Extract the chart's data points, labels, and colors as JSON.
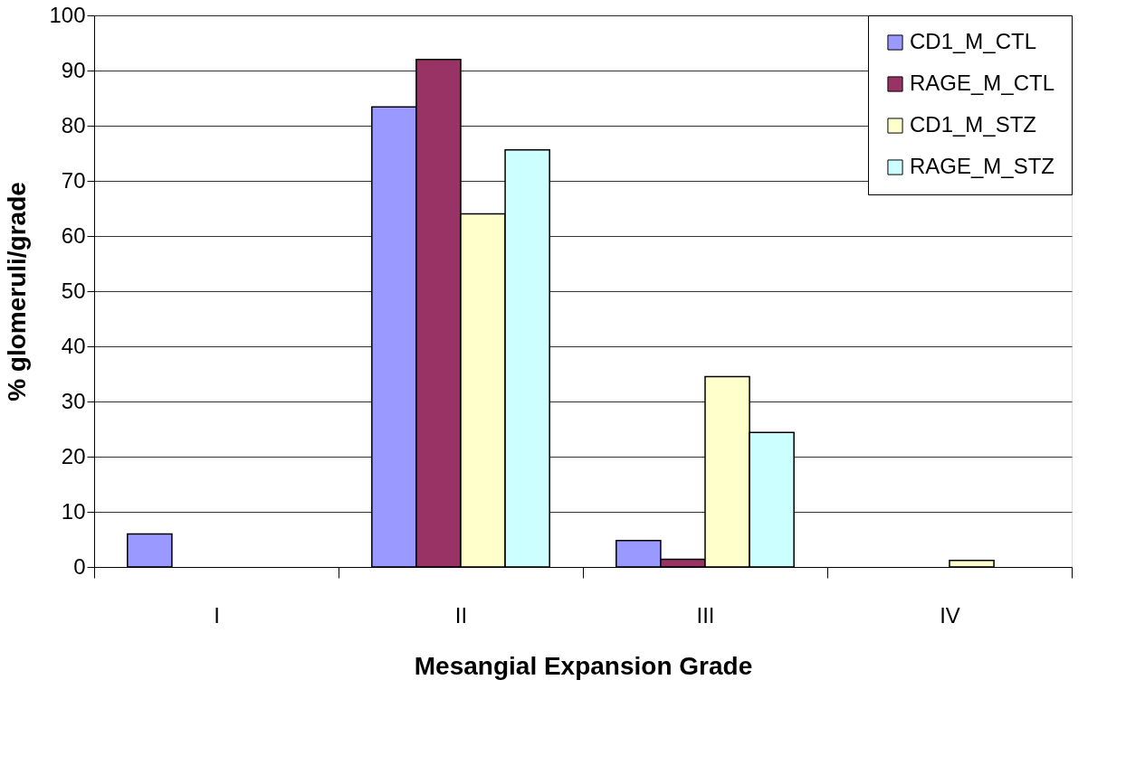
{
  "chart_data": {
    "type": "bar",
    "xlabel": "Mesangial Expansion Grade",
    "ylabel": "% glomeruli/grade",
    "categories": [
      "I",
      "II",
      "III",
      "IV"
    ],
    "series": [
      {
        "name": "CD1_M_CTL",
        "color": "#9999ff",
        "values": [
          6.0,
          83.4,
          4.8,
          null
        ]
      },
      {
        "name": "RAGE_M_CTL",
        "color": "#993366",
        "values": [
          null,
          92.0,
          1.4,
          null
        ]
      },
      {
        "name": "CD1_M_STZ",
        "color": "#ffffcc",
        "values": [
          null,
          64.0,
          34.5,
          1.2
        ]
      },
      {
        "name": "RAGE_M_STZ",
        "color": "#ccffff",
        "values": [
          null,
          75.6,
          24.4,
          null
        ]
      }
    ],
    "ylim": [
      0,
      100
    ],
    "yticks": [
      0,
      10,
      20,
      30,
      40,
      50,
      60,
      70,
      80,
      90,
      100
    ],
    "grid": "y",
    "legend": "top right"
  }
}
